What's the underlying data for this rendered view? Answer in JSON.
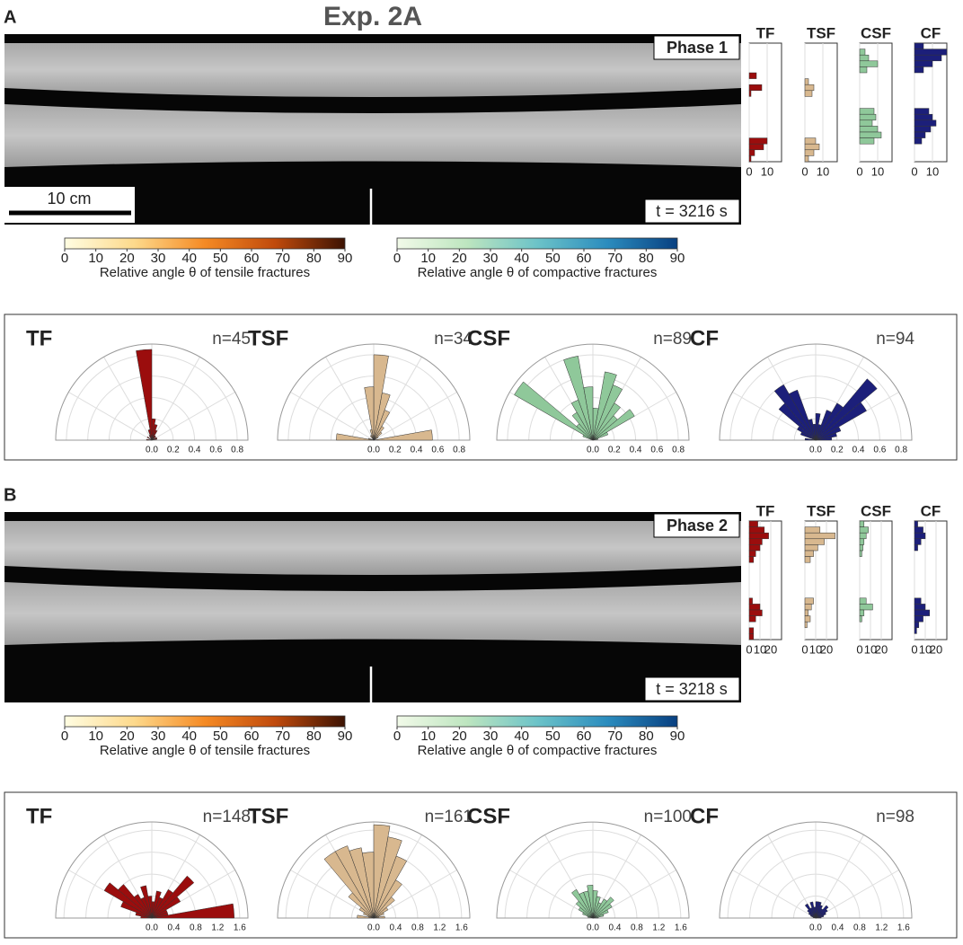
{
  "title": "Exp. 2A",
  "panels": [
    {
      "letter": "A",
      "phase": "Phase 1",
      "time": "t = 3216 s",
      "scale_bar": "10 cm",
      "colorbars": [
        {
          "label": "Relative angle θ of tensile fractures",
          "lim": [
            0,
            90
          ],
          "ticks": [
            0,
            10,
            20,
            30,
            40,
            50,
            60,
            70,
            80,
            90
          ],
          "colors": [
            "#fffde2",
            "#fdd98b",
            "#f58a24",
            "#c04a0c",
            "#3d1303"
          ]
        },
        {
          "label": "Relative angle θ of compactive fractures",
          "lim": [
            0,
            90
          ],
          "ticks": [
            0,
            10,
            20,
            30,
            40,
            50,
            60,
            70,
            80,
            90
          ],
          "colors": [
            "#f2fae9",
            "#bde5bf",
            "#6cc3c8",
            "#2b8cbe",
            "#084081"
          ]
        }
      ],
      "histogram": {
        "type": "histogram",
        "xlim": [
          0,
          18
        ],
        "xticks": [
          0,
          10
        ],
        "series": [
          {
            "name": "TF",
            "color": "#9b0d0d",
            "values": [
              0,
              0,
              0,
              0,
              0,
              4,
              0,
              7,
              1,
              0,
              0,
              0,
              0,
              0,
              0,
              0,
              10,
              8,
              3,
              1
            ]
          },
          {
            "name": "TSF",
            "color": "#d8b88f",
            "values": [
              0,
              0,
              0,
              0,
              0,
              0,
              2,
              5,
              4,
              0,
              0,
              0,
              0,
              0,
              0,
              0,
              6,
              8,
              5,
              2
            ]
          },
          {
            "name": "CSF",
            "color": "#8fc89a",
            "values": [
              0,
              3,
              5,
              10,
              4,
              0,
              0,
              0,
              0,
              0,
              0,
              8,
              9,
              7,
              10,
              12,
              8,
              0,
              0,
              0
            ]
          },
          {
            "name": "CF",
            "color": "#1c1f7a",
            "values": [
              5,
              18,
              15,
              10,
              5,
              0,
              0,
              0,
              0,
              0,
              0,
              8,
              10,
              12,
              9,
              6,
              4,
              0,
              0,
              0
            ]
          }
        ]
      },
      "rose": {
        "type": "rose",
        "rlim": [
          0,
          0.9
        ],
        "rticks": [
          {
            "value": 0,
            "label": "0.0"
          },
          0.2,
          0.4,
          0.6,
          0.8
        ],
        "series": [
          {
            "name": "TF",
            "n_label": "n=45",
            "color": "#9b0d0d",
            "values": [
              0,
              0.05,
              0.05,
              0,
              0.05,
              0.05,
              0.1,
              0.15,
              0.2,
              0.85,
              0.1,
              0.05,
              0,
              0,
              0.05,
              0,
              0,
              0.05
            ]
          },
          {
            "name": "TSF",
            "n_label": "n=34",
            "color": "#d8b88f",
            "values": [
              0.55,
              0,
              0,
              0.05,
              0.1,
              0.15,
              0.3,
              0.45,
              0.8,
              0.5,
              0.1,
              0.05,
              0.05,
              0,
              0,
              0,
              0.05,
              0.35
            ]
          },
          {
            "name": "CSF",
            "n_label": "n=89",
            "color": "#8fc89a",
            "values": [
              0,
              0.05,
              0.15,
              0.45,
              0.3,
              0.4,
              0.55,
              0.65,
              0.3,
              0.5,
              0.8,
              0.4,
              0.3,
              0.2,
              0.85,
              0.1,
              0,
              0
            ]
          },
          {
            "name": "CF",
            "n_label": "n=94",
            "color": "#1c1f7a",
            "values": [
              0.15,
              0.2,
              0.25,
              0.55,
              0.75,
              0.4,
              0.3,
              0.15,
              0.25,
              0.15,
              0.2,
              0.5,
              0.6,
              0.45,
              0.2,
              0.15,
              0,
              0.1
            ]
          }
        ]
      }
    },
    {
      "letter": "B",
      "phase": "Phase 2",
      "time": "t = 3218 s",
      "colorbars": [
        {
          "label": "Relative angle θ of tensile fractures",
          "lim": [
            0,
            90
          ],
          "ticks": [
            0,
            10,
            20,
            30,
            40,
            50,
            60,
            70,
            80,
            90
          ],
          "colors": [
            "#fffde2",
            "#fdd98b",
            "#f58a24",
            "#c04a0c",
            "#3d1303"
          ]
        },
        {
          "label": "Relative angle θ of compactive fractures",
          "lim": [
            0,
            90
          ],
          "ticks": [
            0,
            10,
            20,
            30,
            40,
            50,
            60,
            70,
            80,
            90
          ],
          "colors": [
            "#f2fae9",
            "#bde5bf",
            "#6cc3c8",
            "#2b8cbe",
            "#084081"
          ]
        }
      ],
      "histogram": {
        "type": "histogram",
        "xlim": [
          0,
          30
        ],
        "xticks": [
          0,
          10,
          20
        ],
        "series": [
          {
            "name": "TF",
            "color": "#9b0d0d",
            "values": [
              8,
              14,
              18,
              12,
              10,
              6,
              4,
              0,
              0,
              0,
              0,
              0,
              0,
              3,
              10,
              12,
              6,
              0,
              4,
              4
            ]
          },
          {
            "name": "TSF",
            "color": "#d8b88f",
            "values": [
              0,
              14,
              28,
              18,
              12,
              8,
              5,
              0,
              0,
              0,
              0,
              0,
              0,
              8,
              6,
              3,
              5,
              2,
              0,
              0
            ]
          },
          {
            "name": "CSF",
            "color": "#8fc89a",
            "values": [
              4,
              8,
              6,
              4,
              3,
              2,
              0,
              0,
              0,
              0,
              0,
              0,
              0,
              6,
              12,
              4,
              2,
              0,
              0,
              0
            ]
          },
          {
            "name": "CF",
            "color": "#1c1f7a",
            "values": [
              3,
              8,
              10,
              6,
              3,
              0,
              0,
              0,
              0,
              0,
              0,
              0,
              0,
              6,
              10,
              14,
              8,
              4,
              2,
              0
            ]
          }
        ]
      },
      "rose": {
        "type": "rose",
        "rlim": [
          0,
          1.75
        ],
        "rticks": [
          {
            "value": 0,
            "label": "0.0"
          },
          0.4,
          0.8,
          1.2,
          1.6
        ],
        "series": [
          {
            "name": "TF",
            "n_label": "n=148",
            "color": "#9b0d0d",
            "values": [
              1.5,
              0.3,
              0.3,
              0.6,
              1.0,
              0.6,
              0.4,
              0.5,
              0.3,
              0.4,
              0.6,
              0.4,
              0.5,
              0.8,
              1.0,
              0.6,
              0.3,
              0.2
            ]
          },
          {
            "name": "TSF",
            "n_label": "n=161",
            "color": "#d8b88f",
            "values": [
              0.2,
              0.1,
              0.2,
              0.3,
              0.5,
              0.8,
              1.2,
              1.5,
              1.7,
              1.2,
              1.3,
              1.4,
              1.4,
              0.6,
              0.3,
              0.2,
              0.1,
              0.3
            ]
          },
          {
            "name": "CSF",
            "n_label": "n=100",
            "color": "#8fc89a",
            "values": [
              0.1,
              0.2,
              0.3,
              0.4,
              0.5,
              0.4,
              0.3,
              0.4,
              0.5,
              0.6,
              0.5,
              0.5,
              0.6,
              0.4,
              0.3,
              0.2,
              0.1,
              0
            ]
          },
          {
            "name": "CF",
            "n_label": "n=98",
            "color": "#1c1f7a",
            "values": [
              0.1,
              0.15,
              0.2,
              0.25,
              0.3,
              0.2,
              0.25,
              0.3,
              0.3,
              0.2,
              0.3,
              0.2,
              0.3,
              0.2,
              0.15,
              0.1,
              0.05,
              0
            ]
          }
        ]
      }
    }
  ]
}
